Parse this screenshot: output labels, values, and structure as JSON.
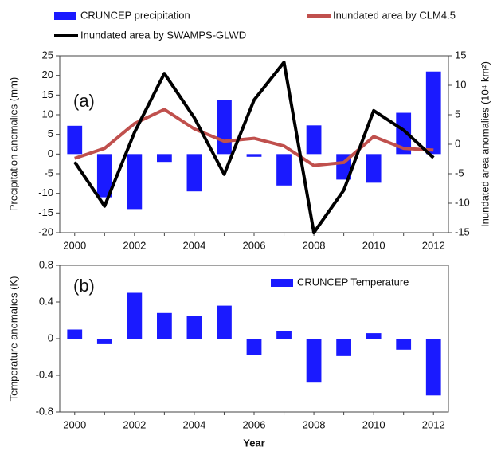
{
  "chart_data": [
    {
      "type": "bar_line",
      "panel_label": "(a)",
      "ylabel": "Precipitation anomalies (mm)",
      "y2label": "Inundated area anomalies (10⁴ km²)",
      "categories": [
        "2000",
        null,
        "2002",
        null,
        "2004",
        null,
        "2006",
        null,
        "2008",
        null,
        "2010",
        null,
        "2012"
      ],
      "ylim": [
        -20,
        25
      ],
      "yticks": [
        -20,
        -15,
        -10,
        -5,
        0,
        5,
        10,
        15,
        20,
        25
      ],
      "y2lim": [
        -15,
        15
      ],
      "y2ticks": [
        -15,
        -10,
        -5,
        0,
        5,
        10,
        15
      ],
      "series": [
        {
          "name": "CRUNCEP precipitation",
          "kind": "bar",
          "color": "#1a1aff",
          "values": [
            7.2,
            -11,
            -14,
            -2,
            -9.5,
            13.7,
            -0.7,
            -8,
            7.3,
            -6.5,
            -7.3,
            10.5,
            21
          ]
        },
        {
          "name": "Inundated area by CLM4.5",
          "kind": "line",
          "axis": "y2",
          "color": "#c0504d",
          "values": [
            -2.4,
            -0.7,
            3.5,
            5.9,
            2.6,
            0.5,
            1.0,
            -0.3,
            -3.6,
            -3.1,
            1.3,
            -0.7,
            -1.0
          ]
        },
        {
          "name": "Inundated area by SWAMPS-GLWD",
          "kind": "line",
          "axis": "y2",
          "color": "#000000",
          "values": [
            -3,
            -10.5,
            2,
            12,
            4.5,
            -5.1,
            7.5,
            13.9,
            -15,
            -7.8,
            5.7,
            2.4,
            -2.3
          ]
        }
      ]
    },
    {
      "type": "bar_line",
      "panel_label": "(b)",
      "ylabel": "Temperature anomalies (K)",
      "xlabel": "Year",
      "categories": [
        "2000",
        null,
        "2002",
        null,
        "2004",
        null,
        "2006",
        null,
        "2008",
        null,
        "2010",
        null,
        "2012"
      ],
      "ylim": [
        -0.8,
        0.8
      ],
      "yticks": [
        -0.8,
        -0.4,
        0,
        0.4,
        0.8
      ],
      "series": [
        {
          "name": "CRUNCEP Temperature",
          "kind": "bar",
          "color": "#1a1aff",
          "values": [
            0.1,
            -0.06,
            0.5,
            0.28,
            0.25,
            0.36,
            -0.18,
            0.08,
            -0.48,
            -0.19,
            0.06,
            -0.12,
            -0.62
          ]
        }
      ]
    }
  ]
}
